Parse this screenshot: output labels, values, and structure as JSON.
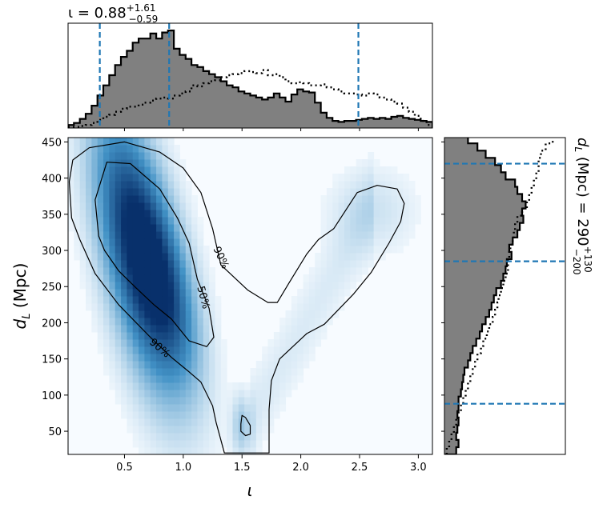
{
  "chart_data": [
    {
      "type": "heatmap",
      "panel": "joint",
      "xlabel": "ι",
      "ylabel": "d_L (Mpc)",
      "xlim": [
        0.02,
        3.12
      ],
      "ylim": [
        18,
        456
      ],
      "x_ticks": [
        0.5,
        1.0,
        1.5,
        2.0,
        2.5,
        3.0
      ],
      "x_tick_labels": [
        "0.5",
        "1.0",
        "1.5",
        "2.0",
        "2.5",
        "3.0"
      ],
      "y_ticks": [
        50,
        100,
        150,
        200,
        250,
        300,
        350,
        400,
        450
      ],
      "y_tick_labels": [
        "50",
        "100",
        "150",
        "200",
        "250",
        "300",
        "350",
        "400",
        "450"
      ],
      "colormap": "Blues",
      "density_peaks": [
        {
          "x": 0.62,
          "y": 300,
          "weight": 1.0
        },
        {
          "x": 0.85,
          "y": 250,
          "weight": 0.45
        },
        {
          "x": 1.5,
          "y": 58,
          "weight": 0.25
        },
        {
          "x": 2.6,
          "y": 355,
          "weight": 0.12
        }
      ],
      "contours": [
        {
          "label": "90%",
          "points": [
            [
              0.03,
              395
            ],
            [
              0.06,
              425
            ],
            [
              0.2,
              442
            ],
            [
              0.5,
              450
            ],
            [
              0.8,
              436
            ],
            [
              1.0,
              414
            ],
            [
              1.15,
              380
            ],
            [
              1.25,
              330
            ],
            [
              1.32,
              280
            ],
            [
              1.55,
              245
            ],
            [
              1.72,
              228
            ],
            [
              1.8,
              228
            ],
            [
              1.9,
              255
            ],
            [
              2.05,
              295
            ],
            [
              2.15,
              315
            ],
            [
              2.28,
              330
            ],
            [
              2.48,
              380
            ],
            [
              2.65,
              390
            ],
            [
              2.82,
              385
            ],
            [
              2.88,
              365
            ],
            [
              2.85,
              340
            ],
            [
              2.75,
              310
            ],
            [
              2.6,
              270
            ],
            [
              2.45,
              240
            ],
            [
              2.2,
              198
            ],
            [
              2.05,
              185
            ],
            [
              1.82,
              150
            ],
            [
              1.75,
              120
            ],
            [
              1.73,
              80
            ],
            [
              1.73,
              20
            ],
            [
              1.52,
              20
            ],
            [
              1.35,
              20
            ],
            [
              1.28,
              62
            ],
            [
              1.25,
              85
            ],
            [
              1.15,
              118
            ],
            [
              1.05,
              132
            ],
            [
              0.9,
              152
            ],
            [
              0.72,
              180
            ],
            [
              0.45,
              225
            ],
            [
              0.25,
              268
            ],
            [
              0.12,
              315
            ],
            [
              0.05,
              345
            ],
            [
              0.03,
              395
            ]
          ]
        },
        {
          "label": "50%",
          "points": [
            [
              0.28,
              320
            ],
            [
              0.25,
              370
            ],
            [
              0.35,
              422
            ],
            [
              0.55,
              420
            ],
            [
              0.8,
              385
            ],
            [
              0.95,
              345
            ],
            [
              1.05,
              310
            ],
            [
              1.12,
              260
            ],
            [
              1.22,
              220
            ],
            [
              1.26,
              180
            ],
            [
              1.2,
              167
            ],
            [
              1.05,
              175
            ],
            [
              0.9,
              205
            ],
            [
              0.75,
              225
            ],
            [
              0.6,
              248
            ],
            [
              0.45,
              272
            ],
            [
              0.33,
              300
            ],
            [
              0.28,
              320
            ]
          ]
        },
        {
          "label": "",
          "points": [
            [
              1.49,
              60
            ],
            [
              1.5,
              72
            ],
            [
              1.53,
              69
            ],
            [
              1.57,
              58
            ],
            [
              1.57,
              46
            ],
            [
              1.53,
              44
            ],
            [
              1.49,
              50
            ],
            [
              1.49,
              60
            ]
          ]
        }
      ],
      "contour_labels": [
        {
          "text": "90%",
          "x": 1.32,
          "y": 290,
          "rotation": 65
        },
        {
          "text": "50%",
          "x": 1.17,
          "y": 235,
          "rotation": 75
        },
        {
          "text": "90%",
          "x": 0.8,
          "y": 165,
          "rotation": 40
        }
      ]
    },
    {
      "type": "bar",
      "panel": "top-marginal",
      "title": "ι = 0.88",
      "title_superscript": "+1.61",
      "title_subscript": "−0.59",
      "xlim": [
        0.02,
        3.12
      ],
      "bin_start": 0.02,
      "bin_width": 0.05,
      "values": [
        0.03,
        0.05,
        0.09,
        0.14,
        0.22,
        0.32,
        0.42,
        0.52,
        0.62,
        0.7,
        0.76,
        0.84,
        0.88,
        0.88,
        0.93,
        0.88,
        0.94,
        0.96,
        0.78,
        0.72,
        0.68,
        0.62,
        0.6,
        0.56,
        0.53,
        0.5,
        0.46,
        0.42,
        0.4,
        0.36,
        0.34,
        0.32,
        0.3,
        0.28,
        0.3,
        0.34,
        0.3,
        0.26,
        0.33,
        0.38,
        0.36,
        0.35,
        0.25,
        0.15,
        0.1,
        0.07,
        0.06,
        0.07,
        0.07,
        0.08,
        0.09,
        0.1,
        0.09,
        0.1,
        0.09,
        0.11,
        0.12,
        0.1,
        0.09,
        0.08,
        0.07,
        0.06
      ],
      "series": [
        {
          "name": "",
          "style": "filled-gray",
          "values_ref": "values"
        },
        {
          "name": "",
          "style": "dotted",
          "values": [
            0.01,
            0.01,
            0.02,
            0.03,
            0.05,
            0.08,
            0.11,
            0.13,
            0.16,
            0.19,
            0.21,
            0.21,
            0.23,
            0.25,
            0.27,
            0.29,
            0.3,
            0.29,
            0.32,
            0.34,
            0.36,
            0.42,
            0.41,
            0.44,
            0.46,
            0.47,
            0.5,
            0.52,
            0.53,
            0.54,
            0.56,
            0.55,
            0.54,
            0.57,
            0.52,
            0.53,
            0.5,
            0.46,
            0.44,
            0.45,
            0.44,
            0.42,
            0.42,
            0.43,
            0.4,
            0.38,
            0.36,
            0.34,
            0.34,
            0.33,
            0.32,
            0.34,
            0.33,
            0.3,
            0.28,
            0.26,
            0.24,
            0.2,
            0.16,
            0.12,
            0.07,
            0.03
          ]
        }
      ],
      "vlines": [
        0.29,
        0.88,
        2.49
      ],
      "x_ticks": [
        0.5,
        1.0,
        1.5,
        2.0,
        2.5,
        3.0
      ]
    },
    {
      "type": "bar",
      "panel": "right-marginal",
      "orientation": "horizontal",
      "title": "d_L (Mpc) = 290",
      "title_superscript": "+130",
      "title_subscript": "−200",
      "ylim": [
        18,
        456
      ],
      "bin_start": 18,
      "bin_width": 10,
      "values": [
        0.1,
        0.12,
        0.1,
        0.11,
        0.12,
        0.11,
        0.12,
        0.12,
        0.14,
        0.15,
        0.16,
        0.17,
        0.2,
        0.22,
        0.24,
        0.27,
        0.3,
        0.32,
        0.35,
        0.38,
        0.4,
        0.42,
        0.44,
        0.48,
        0.5,
        0.52,
        0.53,
        0.57,
        0.55,
        0.58,
        0.62,
        0.64,
        0.67,
        0.66,
        0.69,
        0.66,
        0.62,
        0.6,
        0.52,
        0.48,
        0.43,
        0.35,
        0.28,
        0.2,
        0.14
      ],
      "series": [
        {
          "name": "",
          "style": "filled-gray",
          "values_ref": "values"
        },
        {
          "name": "",
          "style": "dotted",
          "values": [
            0.02,
            0.04,
            0.06,
            0.08,
            0.1,
            0.12,
            0.14,
            0.16,
            0.18,
            0.2,
            0.22,
            0.24,
            0.26,
            0.28,
            0.31,
            0.33,
            0.36,
            0.38,
            0.41,
            0.43,
            0.45,
            0.46,
            0.48,
            0.5,
            0.52,
            0.54,
            0.54,
            0.55,
            0.56,
            0.58,
            0.59,
            0.6,
            0.62,
            0.66,
            0.7,
            0.72,
            0.74,
            0.76,
            0.78,
            0.8,
            0.8,
            0.82,
            0.86,
            0.92,
            0.96
          ]
        }
      ],
      "hlines": [
        88,
        285,
        420
      ],
      "y_ticks": [
        50,
        100,
        150,
        200,
        250,
        300,
        350,
        400,
        450
      ]
    }
  ],
  "colors": {
    "dashed_line": "#1f77b4",
    "histogram_fill": "#808080",
    "contour": "#000000",
    "cmap_low": "#f7fbff",
    "cmap_high": "#08306b"
  }
}
